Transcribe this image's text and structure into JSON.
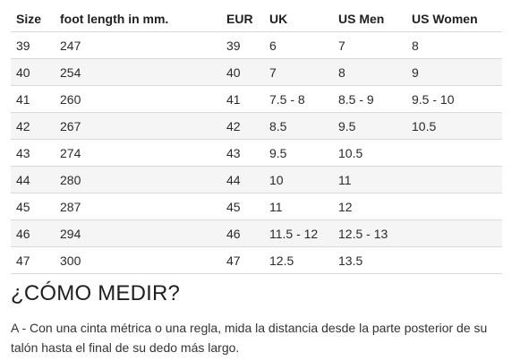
{
  "table": {
    "headers": [
      "Size",
      "foot length in mm.",
      "EUR",
      "UK",
      "US Men",
      "US Women"
    ],
    "rows": [
      [
        "39",
        "247",
        "39",
        "6",
        "7",
        "8"
      ],
      [
        "40",
        "254",
        "40",
        "7",
        "8",
        "9"
      ],
      [
        "41",
        "260",
        "41",
        "7.5 - 8",
        "8.5 - 9",
        "9.5 - 10"
      ],
      [
        "42",
        "267",
        "42",
        "8.5",
        "9.5",
        "10.5"
      ],
      [
        "43",
        "274",
        "43",
        "9.5",
        "10.5",
        ""
      ],
      [
        "44",
        "280",
        "44",
        "10",
        "11",
        ""
      ],
      [
        "45",
        "287",
        "45",
        "11",
        "12",
        ""
      ],
      [
        "46",
        "294",
        "46",
        "11.5 - 12",
        "12.5 - 13",
        ""
      ],
      [
        "47",
        "300",
        "47",
        "12.5",
        "13.5",
        ""
      ]
    ]
  },
  "measure": {
    "title": "¿CÓMO MEDIR?",
    "text": "A - Con una cinta métrica o una regla, mida la distancia desde la parte posterior de su talón hasta el final de su dedo más largo."
  }
}
